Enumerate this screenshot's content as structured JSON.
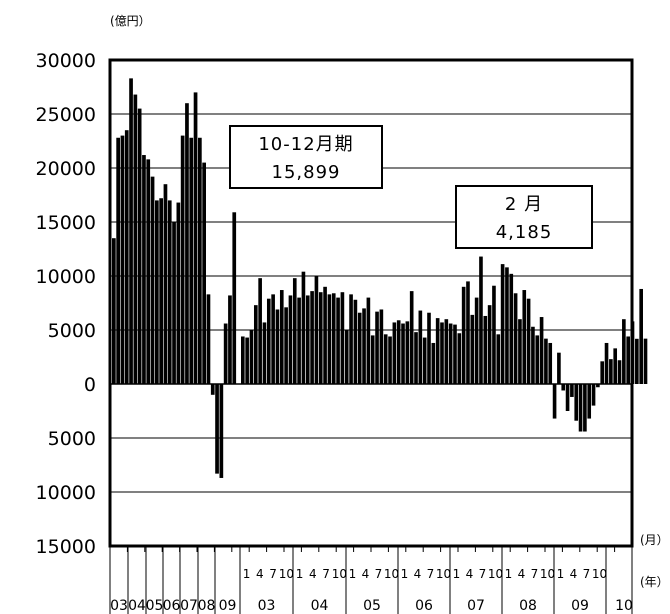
{
  "chart_data": {
    "type": "bar",
    "unit_label": "(億円）",
    "month_label": "(月）",
    "year_label": "(年）",
    "ylim": [
      -15000,
      30000
    ],
    "yticks": [
      {
        "value": 30000,
        "label": "30000"
      },
      {
        "value": 25000,
        "label": "25000"
      },
      {
        "value": 20000,
        "label": "20000"
      },
      {
        "value": 15000,
        "label": "15000"
      },
      {
        "value": 10000,
        "label": "10000"
      },
      {
        "value": 5000,
        "label": "5000"
      },
      {
        "value": 0,
        "label": "0"
      },
      {
        "value": -5000,
        "label": "5000"
      },
      {
        "value": -10000,
        "label": "10000"
      },
      {
        "value": -15000,
        "label": "15000"
      }
    ],
    "grid": true,
    "sections": [
      {
        "label": "03",
        "kind": "annual-quarterly"
      },
      {
        "label": "04",
        "kind": "annual-quarterly"
      },
      {
        "label": "05",
        "kind": "annual-quarterly"
      },
      {
        "label": "06",
        "kind": "annual-quarterly"
      },
      {
        "label": "07",
        "kind": "annual-quarterly"
      },
      {
        "label": "08",
        "kind": "annual-quarterly"
      },
      {
        "label": "09",
        "kind": "annual-quarterly"
      },
      {
        "label": "03",
        "kind": "monthly"
      },
      {
        "label": "04",
        "kind": "monthly"
      },
      {
        "label": "05",
        "kind": "monthly"
      },
      {
        "label": "06",
        "kind": "monthly"
      },
      {
        "label": "07",
        "kind": "monthly"
      },
      {
        "label": "08",
        "kind": "monthly"
      },
      {
        "label": "09",
        "kind": "monthly"
      },
      {
        "label": "10",
        "kind": "monthly"
      }
    ],
    "month_tick_labels": [
      "1",
      "4",
      "7",
      "10"
    ],
    "quarterly_values": [
      13500,
      22800,
      23000,
      23500,
      28300,
      26800,
      25500,
      21200,
      20800,
      19200,
      17000,
      17200,
      18500,
      17000,
      15000,
      16800,
      23000,
      26000,
      22800,
      27000,
      22800,
      20500,
      8300,
      -1000,
      -8300,
      -8700,
      5600,
      8200,
      15899
    ],
    "monthly_values": [
      4400,
      4300,
      5000,
      7300,
      9800,
      5700,
      7900,
      8300,
      6900,
      8700,
      7100,
      8200,
      9800,
      8000,
      10400,
      8200,
      8600,
      10000,
      8500,
      9000,
      8300,
      8400,
      8000,
      8500,
      5000,
      8300,
      7800,
      6600,
      7000,
      8000,
      4500,
      6700,
      6900,
      4600,
      4400,
      5700,
      5900,
      5600,
      5800,
      8600,
      4800,
      6800,
      4300,
      6600,
      3800,
      6100,
      5700,
      6000,
      5600,
      5500,
      4700,
      9000,
      9500,
      6400,
      8000,
      11800,
      6300,
      7300,
      9100,
      4600,
      11100,
      10800,
      10200,
      8400,
      6000,
      8700,
      7900,
      5300,
      4500,
      6200,
      4200,
      3800,
      -3200,
      2900,
      -600,
      -2500,
      -1200,
      -3400,
      -4400,
      -4400,
      -3200,
      -2000,
      -300,
      2100,
      3800,
      2300,
      3300,
      2200,
      6000,
      4400,
      5800,
      4185,
      8800,
      4200
    ],
    "annotations": [
      {
        "line1": "10-12月期",
        "line2": "15,899"
      },
      {
        "line1": "2 月",
        "line2": "4,185"
      }
    ]
  }
}
